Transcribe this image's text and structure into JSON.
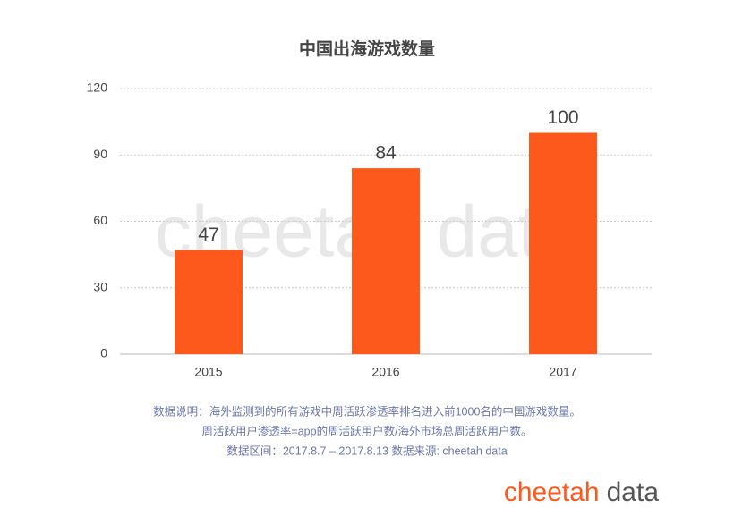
{
  "chart_data": {
    "type": "bar",
    "title": "中国出海游戏数量",
    "categories": [
      "2015",
      "2016",
      "2017"
    ],
    "values": [
      47,
      84,
      100
    ],
    "color": "#fe591d",
    "ylim": [
      0,
      120
    ],
    "yticks": [
      0,
      30,
      60,
      90,
      120
    ],
    "grid": true,
    "notes": [
      "数据说明：海外监测到的所有游戏中周活跃渗透率排名进入前1000名的中国游戏数量。",
      "周活跃用户渗透率=app的周活跃用户数/海外市场总周活跃用户数。",
      "数据区间：2017.8.7 – 2017.8.13 数据来源: cheetah data"
    ],
    "watermark": "cheetah data",
    "logo": {
      "brand": "cheetah",
      "suffix": "data"
    }
  }
}
